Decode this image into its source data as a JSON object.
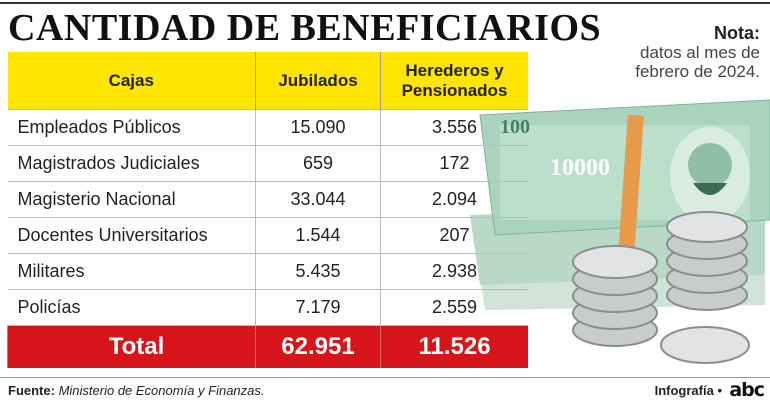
{
  "title": "CANTIDAD DE BENEFICIARIOS",
  "note": {
    "label": "Nota:",
    "text": "datos al mes de febrero de 2024."
  },
  "table": {
    "headers": [
      "Cajas",
      "Jubilados",
      "Herederos y Pensionados"
    ],
    "rows": [
      [
        "Empleados Públicos",
        "15.090",
        "3.556"
      ],
      [
        "Magistrados Judiciales",
        "659",
        "172"
      ],
      [
        "Magisterio Nacional",
        "33.044",
        "2.094"
      ],
      [
        "Docentes Universitarios",
        "1.544",
        "207"
      ],
      [
        "Militares",
        "5.435",
        "2.938"
      ],
      [
        "Policías",
        "7.179",
        "2.559"
      ]
    ],
    "total": [
      "Total",
      "62.951",
      "11.526"
    ]
  },
  "footer": {
    "source_label": "Fuente:",
    "source": "Ministerio de Economía y Finanzas.",
    "credit": "Infografía •",
    "logo": "abc"
  }
}
